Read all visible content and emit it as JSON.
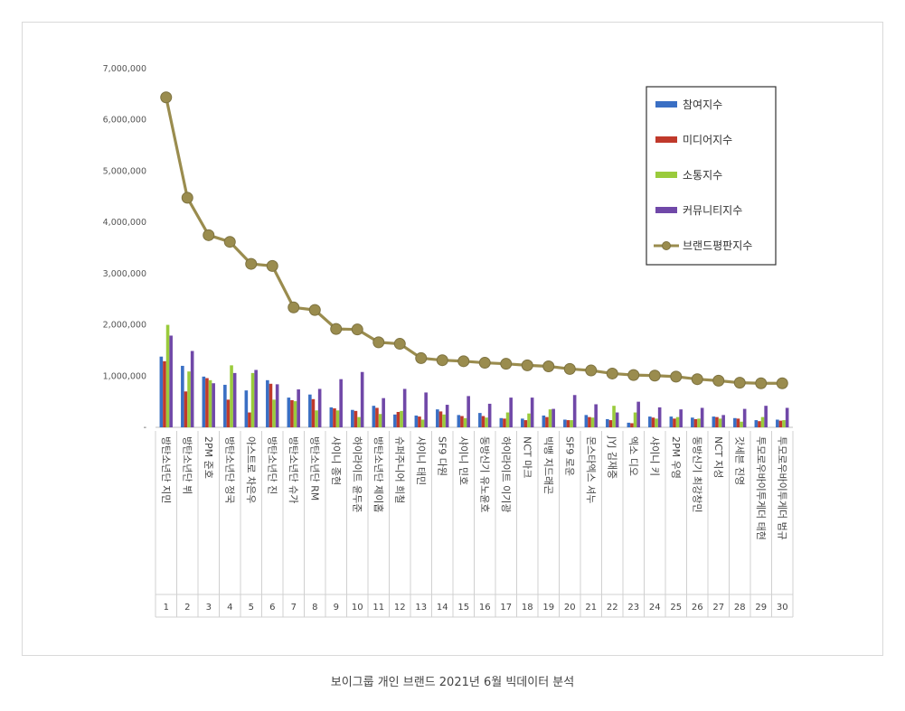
{
  "caption": "보이그룹 개인 브랜드 2021년 6월 빅데이터 분석",
  "chart_data": {
    "type": "bar",
    "title": "",
    "xlabel": "",
    "ylabel": "",
    "ylim": [
      0,
      7000000
    ],
    "yticks": [
      "-",
      "1,000,000",
      "2,000,000",
      "3,000,000",
      "4,000,000",
      "5,000,000",
      "6,000,000",
      "7,000,000"
    ],
    "grid": false,
    "legend_position": "top-right",
    "ranks": [
      "1",
      "2",
      "3",
      "4",
      "5",
      "6",
      "7",
      "8",
      "9",
      "10",
      "11",
      "12",
      "13",
      "14",
      "15",
      "16",
      "17",
      "18",
      "19",
      "20",
      "21",
      "22",
      "23",
      "24",
      "25",
      "26",
      "27",
      "28",
      "29",
      "30"
    ],
    "categories": [
      "방탄소년단 지민",
      "방탄소년단 뷔",
      "2PM 준호",
      "방탄소년단 정국",
      "아스트로 차은우",
      "방탄소년단 진",
      "방탄소년단 슈가",
      "방탄소년단 RM",
      "샤이니 종현",
      "하이라이트 윤두준",
      "방탄소년단 제이홉",
      "슈퍼주니어 희철",
      "샤이니 태민",
      "SF9 다원",
      "샤이니 민호",
      "동방신기 유노윤호",
      "하이라이트 이기광",
      "NCT 마크",
      "빅뱅 지드래곤",
      "SF9 로운",
      "몬스타엑스 셔누",
      "JYJ 김재중",
      "엑소 디오",
      "샤이니 키",
      "2PM 우영",
      "동방신기 최강창민",
      "NCT 지성",
      "갓세븐 진영",
      "투모로우바이투게더 태현",
      "투모로우바이투게더 범규"
    ],
    "series": [
      {
        "name": "참여지수",
        "color": "#3a6fc4",
        "kind": "bar",
        "values": [
          1380000,
          1200000,
          990000,
          830000,
          720000,
          920000,
          580000,
          640000,
          390000,
          340000,
          420000,
          250000,
          230000,
          350000,
          240000,
          280000,
          180000,
          170000,
          230000,
          150000,
          240000,
          160000,
          90000,
          210000,
          210000,
          190000,
          210000,
          180000,
          140000,
          150000
        ]
      },
      {
        "name": "미디어지수",
        "color": "#c0392b",
        "kind": "bar",
        "values": [
          1290000,
          700000,
          960000,
          540000,
          290000,
          850000,
          530000,
          550000,
          370000,
          320000,
          380000,
          300000,
          210000,
          310000,
          220000,
          220000,
          170000,
          140000,
          200000,
          140000,
          200000,
          140000,
          80000,
          190000,
          170000,
          160000,
          200000,
          170000,
          120000,
          130000
        ]
      },
      {
        "name": "소통지수",
        "color": "#9acb3c",
        "kind": "bar",
        "values": [
          2000000,
          1090000,
          920000,
          1210000,
          1060000,
          540000,
          510000,
          330000,
          330000,
          200000,
          260000,
          320000,
          150000,
          250000,
          180000,
          190000,
          290000,
          270000,
          350000,
          140000,
          190000,
          420000,
          290000,
          170000,
          200000,
          170000,
          170000,
          110000,
          200000,
          140000
        ]
      },
      {
        "name": "커뮤니티지수",
        "color": "#7048a8",
        "kind": "bar",
        "values": [
          1790000,
          1490000,
          860000,
          1060000,
          1120000,
          840000,
          740000,
          750000,
          940000,
          1080000,
          570000,
          750000,
          680000,
          440000,
          610000,
          460000,
          580000,
          580000,
          360000,
          630000,
          450000,
          290000,
          500000,
          390000,
          350000,
          380000,
          240000,
          360000,
          420000,
          380000
        ]
      },
      {
        "name": "브랜드평판지수",
        "color": "#9a8c4e",
        "kind": "line",
        "values": [
          6440000,
          4480000,
          3750000,
          3620000,
          3190000,
          3150000,
          2340000,
          2290000,
          1920000,
          1910000,
          1660000,
          1630000,
          1350000,
          1310000,
          1290000,
          1260000,
          1240000,
          1210000,
          1190000,
          1140000,
          1110000,
          1050000,
          1020000,
          1010000,
          990000,
          940000,
          910000,
          870000,
          860000,
          860000
        ]
      }
    ]
  }
}
